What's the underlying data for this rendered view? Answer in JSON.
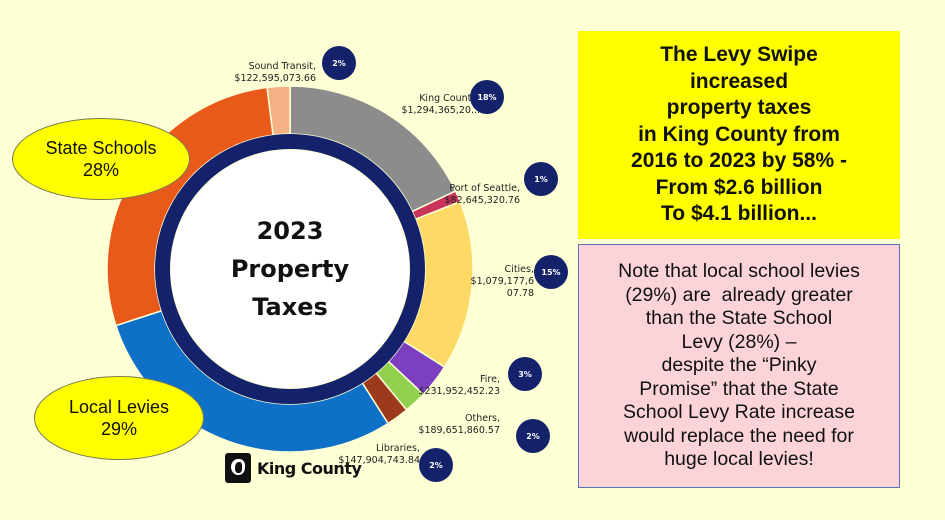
{
  "chart_data": {
    "type": "pie",
    "style": "donut",
    "inner_ring": {
      "color": "#13226a"
    },
    "center_title_lines": [
      "2023",
      "Property",
      "Taxes"
    ],
    "slices": [
      {
        "name": "King County",
        "label_lines": [
          "King County,",
          "$1,294,365,20..."
        ],
        "value": 18,
        "percent_label": "18%",
        "color": "#8c8c8c"
      },
      {
        "name": "Port of Seattle",
        "label_lines": [
          "Port of Seattle,",
          "$82,645,320.76"
        ],
        "value": 1,
        "percent_label": "1%",
        "color": "#c8345a"
      },
      {
        "name": "Cities",
        "label_lines": [
          "Cities,",
          "$1,079,177,6",
          "07.78"
        ],
        "value": 15,
        "percent_label": "15%",
        "color": "#ffd966"
      },
      {
        "name": "Fire",
        "label_lines": [
          "Fire,",
          "$231,952,452.23"
        ],
        "value": 3,
        "percent_label": "3%",
        "color": "#7c3fbf"
      },
      {
        "name": "Others",
        "label_lines": [
          "Others,",
          "$189,651,860.57"
        ],
        "value": 2,
        "percent_label": "2%",
        "color": "#92d050"
      },
      {
        "name": "Libraries",
        "label_lines": [
          "Libraries,",
          "$147,904,743.84"
        ],
        "value": 2,
        "percent_label": "2%",
        "color": "#9c3a1e"
      },
      {
        "name": "Local Levies",
        "value": 29,
        "color": "#0f70c8"
      },
      {
        "name": "State Schools",
        "value": 28,
        "color": "#e8591a"
      },
      {
        "name": "Sound Transit",
        "label_lines": [
          "Sound Transit,",
          "$122,595,073.66"
        ],
        "value": 2,
        "percent_label": "2%",
        "color": "#f4b183"
      }
    ]
  },
  "callouts": {
    "state_schools": {
      "line1": "State Schools",
      "line2": "28%"
    },
    "local_levies": {
      "line1": "Local Levies",
      "line2": "29%"
    }
  },
  "logo": {
    "text": "King County"
  },
  "headline_box": {
    "lines": [
      "The Levy Swipe",
      "increased",
      "property taxes",
      "in King County from",
      "2016 to 2023 by 58% -",
      "From $2.6 billion",
      "To $4.1 billion..."
    ]
  },
  "note_box": {
    "lines": [
      "Note that local school levies",
      "(29%) are  already greater",
      "than the State School",
      "Levy (28%) –",
      "despite the “Pinky",
      "Promise” that the State",
      "School Levy Rate increase",
      "would replace the need for",
      "huge local levies!"
    ]
  }
}
